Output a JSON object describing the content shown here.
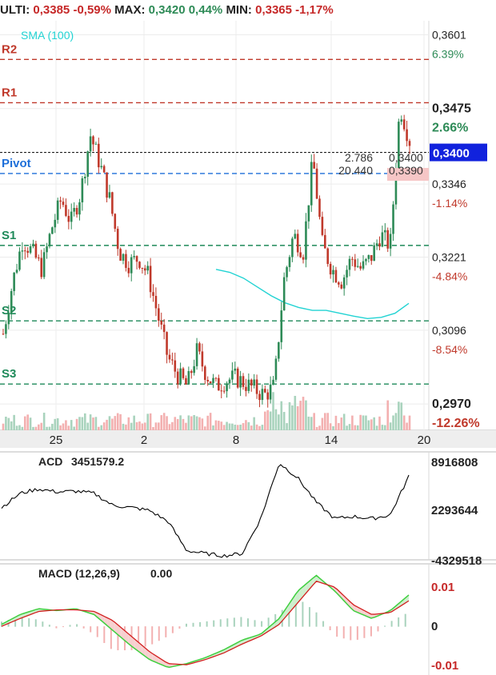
{
  "header": {
    "last_label": "ULTI:",
    "last_value": "0,3385",
    "last_change": "-0,59%",
    "max_label": "MAX:",
    "max_value": "0,3420",
    "max_change": "0,44%",
    "min_label": "MIN:",
    "min_value": "0,3365",
    "min_change": "-1,17%"
  },
  "colors": {
    "up": "#2e8b57",
    "down": "#c0392b",
    "resistance": "#c0392b",
    "pivot": "#1e6fd9",
    "support": "#1f8a5a",
    "sma": "#22d3d3",
    "macd_fast": "#3fcf3f",
    "macd_signal": "#d21f1f"
  },
  "chart_data": [
    {
      "type": "candlestick",
      "title": "",
      "x_ticks": [
        "25",
        "2",
        "8",
        "14",
        "20"
      ],
      "ylim": [
        0.2925,
        0.3625
      ],
      "y_ticks": [
        {
          "value": 0.3601,
          "label": "0,3601",
          "pct": "6.39%",
          "pct_color": "pos"
        },
        {
          "value": 0.3475,
          "label": "0,3475",
          "pct": "2.66%",
          "pct_color": "pos"
        },
        {
          "value": 0.3346,
          "label": "0,3346",
          "pct": "-1.14%",
          "pct_color": "neg"
        },
        {
          "value": 0.3221,
          "label": "0,3221",
          "pct": "-4.84%",
          "pct_color": "neg"
        },
        {
          "value": 0.3096,
          "label": "0,3096",
          "pct": "-8.54%",
          "pct_color": "neg"
        },
        {
          "value": 0.297,
          "label": "0,2970",
          "pct": "-12.26%",
          "pct_color": "neg"
        }
      ],
      "current_price": {
        "value": 0.34,
        "label": "0,3400"
      },
      "levels": [
        {
          "name": "R2",
          "value": 0.3559,
          "kind": "resistance"
        },
        {
          "name": "R1",
          "value": 0.3485,
          "kind": "resistance"
        },
        {
          "name": "Pivot",
          "value": 0.3364,
          "kind": "pivot"
        },
        {
          "name": "S1",
          "value": 0.3241,
          "kind": "support"
        },
        {
          "name": "S2",
          "value": 0.3112,
          "kind": "support"
        },
        {
          "name": "S3",
          "value": 0.3004,
          "kind": "support"
        }
      ],
      "sma_label": "SMA (100)",
      "sma": [
        0.32,
        0.3195,
        0.3185,
        0.317,
        0.3155,
        0.3143,
        0.3135,
        0.313,
        0.313,
        0.3125,
        0.312,
        0.3116,
        0.3118,
        0.3125,
        0.3142
      ],
      "order_book": [
        {
          "qty": "2.786",
          "price": "0,3400"
        },
        {
          "qty": "20.440",
          "price": "0,3390"
        }
      ],
      "close_path": [
        0.309,
        0.318,
        0.325,
        0.323,
        0.32,
        0.327,
        0.332,
        0.328,
        0.333,
        0.343,
        0.338,
        0.332,
        0.323,
        0.321,
        0.322,
        0.319,
        0.312,
        0.305,
        0.302,
        0.3,
        0.306,
        0.302,
        0.3,
        0.301,
        0.3015,
        0.3005,
        0.2995,
        0.2985,
        0.3,
        0.318,
        0.326,
        0.323,
        0.339,
        0.324,
        0.32,
        0.318,
        0.322,
        0.32,
        0.322,
        0.326,
        0.324,
        0.348,
        0.342
      ]
    },
    {
      "type": "line",
      "title": "ACD",
      "value_label": "3451579.2",
      "y_ticks": [
        "8916808",
        "2293644",
        "-4329518"
      ],
      "ylim": [
        -4329518,
        8916808
      ],
      "values": [
        2500000,
        4400000,
        5000000,
        4600000,
        4700000,
        4400000,
        2800000,
        2500000,
        2100000,
        600000,
        -3300000,
        -3700000,
        -4000000,
        -3700000,
        1000000,
        8500000,
        6500000,
        3200000,
        1000000,
        1300000,
        1000000,
        1500000,
        6700000
      ]
    },
    {
      "type": "line",
      "title": "MACD (12,26,9)",
      "value_label": "0.00",
      "y_ticks": [
        "0.01",
        "0",
        "-0.01"
      ],
      "ylim": [
        -0.012,
        0.0145
      ],
      "macd": [
        0.0005,
        0.003,
        0.0045,
        0.004,
        0.0045,
        0.003,
        -0.001,
        -0.005,
        -0.0085,
        -0.0105,
        -0.0095,
        -0.008,
        -0.006,
        -0.0035,
        -0.002,
        0.002,
        0.009,
        0.013,
        0.009,
        0.004,
        0.002,
        0.004,
        0.008
      ],
      "signal": [
        0.0,
        0.002,
        0.0038,
        0.0042,
        0.0042,
        0.0038,
        0.0015,
        -0.0025,
        -0.0065,
        -0.0095,
        -0.0098,
        -0.0085,
        -0.0068,
        -0.0045,
        -0.0025,
        0.0005,
        0.006,
        0.0115,
        0.01,
        0.0055,
        0.003,
        0.0035,
        0.0065
      ]
    }
  ]
}
